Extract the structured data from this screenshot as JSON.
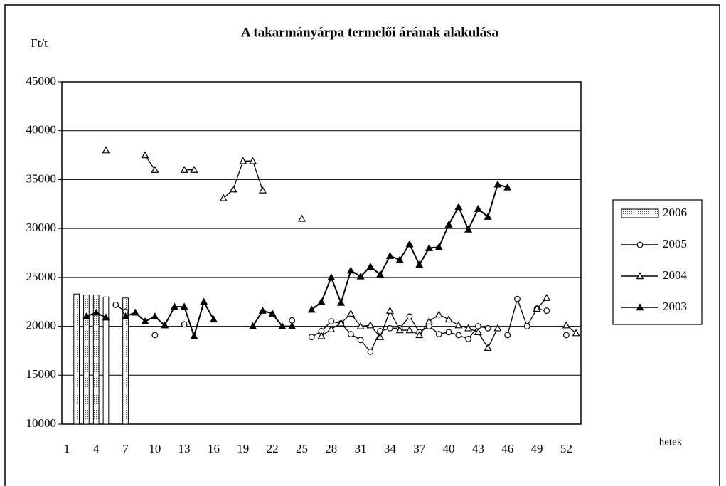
{
  "chart_data": {
    "type": "line",
    "title": "A takarmányárpa termelői árának alakulása",
    "ylabel": "Ft/t",
    "xlabel": "hetek",
    "categories": [
      1,
      null,
      null,
      4,
      null,
      null,
      7,
      null,
      null,
      10,
      null,
      null,
      13,
      null,
      null,
      16,
      null,
      null,
      19,
      null,
      null,
      22,
      null,
      null,
      25,
      null,
      null,
      28,
      null,
      null,
      31,
      null,
      null,
      34,
      null,
      null,
      37,
      null,
      null,
      40,
      null,
      null,
      43,
      null,
      null,
      46,
      null,
      null,
      49,
      null,
      null,
      52,
      null
    ],
    "ylim": [
      10000,
      45000
    ],
    "yticks": [
      10000,
      15000,
      20000,
      25000,
      30000,
      35000,
      40000,
      45000
    ],
    "grid": true,
    "legend": "right",
    "series": [
      {
        "name": "2006",
        "type": "bar",
        "color": "#d8d8d8",
        "values": [
          null,
          23300,
          23200,
          23200,
          23000,
          null,
          22900,
          null,
          null,
          null,
          null,
          null,
          null,
          null,
          null,
          null,
          null,
          null,
          null,
          null,
          null,
          null,
          null,
          null,
          null,
          null,
          null,
          null,
          null,
          null,
          null,
          null,
          null,
          null,
          null,
          null,
          null,
          null,
          null,
          null,
          null,
          null,
          null,
          null,
          null,
          null,
          null,
          null,
          null,
          null,
          null,
          null,
          null
        ]
      },
      {
        "name": "2005",
        "marker": "circle",
        "color": "#000000",
        "values": [
          null,
          null,
          null,
          null,
          null,
          22200,
          21500,
          null,
          null,
          19100,
          null,
          null,
          20200,
          null,
          null,
          null,
          null,
          null,
          null,
          null,
          null,
          null,
          null,
          20600,
          null,
          18900,
          19500,
          20500,
          20300,
          19200,
          18600,
          17400,
          19500,
          19800,
          19800,
          21000,
          19400,
          20000,
          19200,
          19400,
          19100,
          18700,
          20000,
          19800,
          null,
          19100,
          22800,
          20000,
          21800,
          21600,
          null,
          19100,
          null
        ]
      },
      {
        "name": "2004",
        "marker": "triangle",
        "color": "#000000",
        "values": [
          null,
          null,
          null,
          null,
          38000,
          null,
          null,
          null,
          37500,
          36000,
          null,
          null,
          36000,
          36000,
          null,
          null,
          33100,
          34000,
          36900,
          36900,
          33900,
          null,
          null,
          null,
          31000,
          null,
          19000,
          19700,
          20300,
          21300,
          20000,
          20100,
          18900,
          21600,
          19600,
          19600,
          19100,
          20500,
          21200,
          20700,
          20100,
          19800,
          19400,
          17800,
          19800,
          null,
          null,
          null,
          21800,
          22900,
          null,
          20100,
          19300
        ]
      },
      {
        "name": "2003",
        "marker": "filled-triangle",
        "color": "#000000",
        "values": [
          null,
          null,
          21000,
          21400,
          20900,
          null,
          21000,
          21400,
          20500,
          21000,
          20100,
          22000,
          22000,
          19000,
          22500,
          20700,
          null,
          null,
          null,
          20000,
          21600,
          21300,
          20000,
          20000,
          null,
          21700,
          22500,
          25000,
          22400,
          25700,
          25100,
          26100,
          25300,
          27200,
          26800,
          28400,
          26300,
          28000,
          28100,
          30400,
          32200,
          29900,
          32000,
          31200,
          34500,
          34200,
          null,
          null,
          null,
          null,
          null,
          null,
          null
        ]
      }
    ]
  }
}
